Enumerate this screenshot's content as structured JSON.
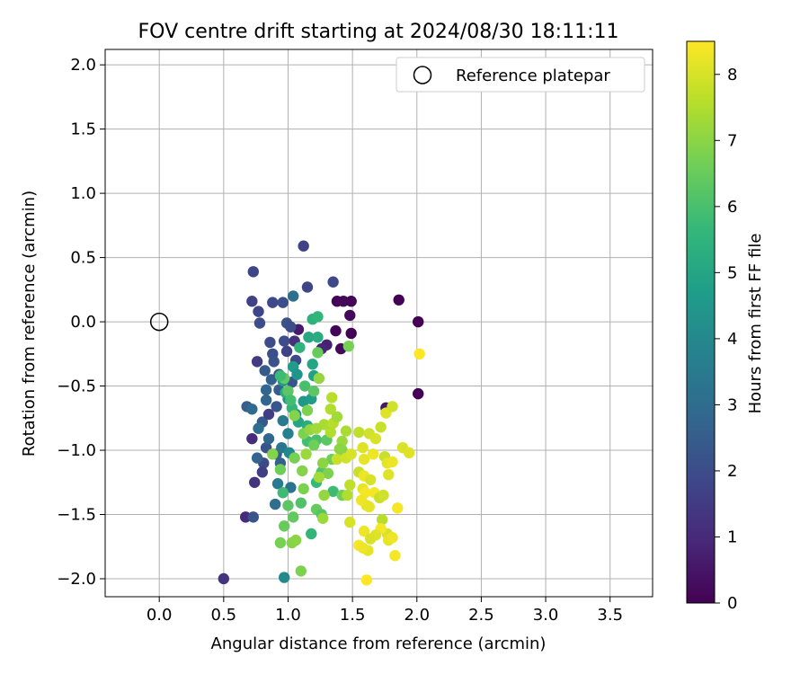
{
  "chart_data": {
    "type": "scatter",
    "title": "FOV centre drift starting at 2024/08/30 18:11:11",
    "xlabel": "Angular distance from reference (arcmin)",
    "ylabel": "Rotation from reference (arcmin)",
    "xlim": [
      -0.42,
      3.83
    ],
    "ylim": [
      -2.14,
      2.12
    ],
    "xticks": [
      0.0,
      0.5,
      1.0,
      1.5,
      2.0,
      2.5,
      3.0,
      3.5
    ],
    "xtick_labels": [
      "0.0",
      "0.5",
      "1.0",
      "1.5",
      "2.0",
      "2.5",
      "3.0",
      "3.5"
    ],
    "yticks": [
      -2.0,
      -1.5,
      -1.0,
      -0.5,
      0.0,
      0.5,
      1.0,
      1.5,
      2.0
    ],
    "ytick_labels": [
      "−2.0",
      "−1.5",
      "−1.0",
      "−0.5",
      "0.0",
      "0.5",
      "1.0",
      "1.5",
      "2.0"
    ],
    "grid": true,
    "legend": {
      "position": "top-right",
      "entries": [
        "Reference platepar"
      ]
    },
    "reference_point": {
      "x": 0.0,
      "y": 0.0,
      "label": "Reference platepar"
    },
    "colorbar": {
      "label": "Hours from first FF file",
      "range": [
        0,
        8.5
      ],
      "ticks": [
        0,
        1,
        2,
        3,
        4,
        5,
        6,
        7,
        8
      ],
      "tick_labels": [
        "0",
        "1",
        "2",
        "3",
        "4",
        "5",
        "6",
        "7",
        "8"
      ],
      "colormap": "viridis",
      "colors": [
        "#440154",
        "#482878",
        "#3e4989",
        "#31688e",
        "#26828e",
        "#1f9e89",
        "#35b779",
        "#6ece58",
        "#b5de2b",
        "#fde725"
      ]
    },
    "points": [
      [
        1.86,
        0.17,
        0.0
      ],
      [
        2.01,
        0.0,
        0.0
      ],
      [
        2.01,
        -0.56,
        0.0
      ],
      [
        1.38,
        0.16,
        0.1
      ],
      [
        1.43,
        0.16,
        0.2
      ],
      [
        1.49,
        0.16,
        0.1
      ],
      [
        1.48,
        0.05,
        0.2
      ],
      [
        1.49,
        -0.09,
        0.0
      ],
      [
        1.41,
        -0.21,
        0.2
      ],
      [
        1.37,
        -0.07,
        0.1
      ],
      [
        1.08,
        -0.06,
        0.6
      ],
      [
        1.76,
        -0.67,
        0.5
      ],
      [
        1.05,
        -0.15,
        1.2
      ],
      [
        1.3,
        -0.18,
        0.8
      ],
      [
        1.26,
        -0.21,
        0.9
      ],
      [
        1.12,
        0.59,
        1.7
      ],
      [
        1.15,
        0.27,
        1.8
      ],
      [
        1.35,
        0.31,
        1.9
      ],
      [
        0.73,
        0.39,
        1.8
      ],
      [
        0.72,
        0.16,
        1.7
      ],
      [
        0.77,
        0.08,
        1.8
      ],
      [
        0.78,
        -0.01,
        2.0
      ],
      [
        0.88,
        0.15,
        1.9
      ],
      [
        0.96,
        0.15,
        2.1
      ],
      [
        1.04,
        0.2,
        3.1
      ],
      [
        0.76,
        -0.31,
        1.5
      ],
      [
        0.86,
        -0.16,
        2.0
      ],
      [
        0.88,
        -0.25,
        2.1
      ],
      [
        0.89,
        -0.31,
        2.2
      ],
      [
        0.82,
        -0.38,
        2.4
      ],
      [
        0.87,
        -0.45,
        2.6
      ],
      [
        0.83,
        -0.53,
        2.8
      ],
      [
        0.91,
        -0.66,
        2.3
      ],
      [
        0.93,
        -0.41,
        2.1
      ],
      [
        0.97,
        -0.15,
        2.0
      ],
      [
        0.99,
        -0.01,
        2.2
      ],
      [
        1.02,
        -0.04,
        2.0
      ],
      [
        0.99,
        -0.23,
        1.7
      ],
      [
        1.06,
        -0.3,
        1.9
      ],
      [
        1.03,
        -0.47,
        2.3
      ],
      [
        0.93,
        -0.53,
        2.5
      ],
      [
        0.8,
        -0.78,
        2.4
      ],
      [
        0.83,
        -0.98,
        2.2
      ],
      [
        0.81,
        -1.1,
        1.9
      ],
      [
        0.8,
        -1.17,
        1.6
      ],
      [
        0.74,
        -1.25,
        1.3
      ],
      [
        0.72,
        -0.91,
        1.1
      ],
      [
        0.67,
        -1.52,
        1.0
      ],
      [
        0.73,
        -1.52,
        2.2
      ],
      [
        0.5,
        -2.0,
        1.3
      ],
      [
        0.68,
        -0.66,
        2.5
      ],
      [
        0.72,
        -0.68,
        2.9
      ],
      [
        0.77,
        -0.83,
        3.0
      ],
      [
        0.76,
        -1.06,
        2.7
      ],
      [
        0.85,
        -0.91,
        2.8
      ],
      [
        0.91,
        -1.03,
        2.6
      ],
      [
        0.96,
        -0.77,
        3.5
      ],
      [
        1.0,
        -0.87,
        3.7
      ],
      [
        0.95,
        -0.98,
        3.3
      ],
      [
        0.94,
        -1.1,
        2.6
      ],
      [
        0.92,
        -1.26,
        3.5
      ],
      [
        0.9,
        -1.42,
        3.1
      ],
      [
        1.02,
        -1.29,
        3.2
      ],
      [
        1.01,
        -1.02,
        4.0
      ],
      [
        1.0,
        -0.6,
        4.2
      ],
      [
        1.06,
        -0.72,
        4.1
      ],
      [
        1.12,
        -0.62,
        4.5
      ],
      [
        1.18,
        -0.6,
        4.7
      ],
      [
        1.2,
        -0.42,
        4.8
      ],
      [
        1.19,
        -0.33,
        5.0
      ],
      [
        1.23,
        -0.12,
        5.2
      ],
      [
        1.19,
        0.02,
        5.4
      ],
      [
        1.23,
        0.04,
        5.6
      ],
      [
        1.16,
        -0.12,
        5.1
      ],
      [
        1.09,
        -0.2,
        5.5
      ],
      [
        1.04,
        -0.35,
        4.7
      ],
      [
        1.07,
        -0.41,
        4.4
      ],
      [
        0.96,
        -0.46,
        4.6
      ],
      [
        0.98,
        -0.55,
        5.3
      ],
      [
        1.03,
        -0.67,
        5.6
      ],
      [
        1.08,
        -0.78,
        5.0
      ],
      [
        1.15,
        -0.81,
        5.3
      ],
      [
        1.15,
        -0.93,
        5.9
      ],
      [
        1.22,
        -0.92,
        6.0
      ],
      [
        1.3,
        -0.92,
        6.3
      ],
      [
        1.34,
        -1.07,
        6.6
      ],
      [
        1.42,
        -1.0,
        6.9
      ],
      [
        1.26,
        -1.17,
        6.1
      ],
      [
        1.22,
        -1.25,
        5.7
      ],
      [
        1.35,
        -1.32,
        5.8
      ],
      [
        1.42,
        -1.35,
        6.6
      ],
      [
        0.97,
        -1.99,
        4.0
      ],
      [
        0.94,
        -1.72,
        6.7
      ],
      [
        0.97,
        -1.59,
        6.5
      ],
      [
        1.18,
        -1.65,
        5.6
      ],
      [
        1.03,
        -1.72,
        6.9
      ],
      [
        1.1,
        -1.94,
        6.8
      ],
      [
        1.06,
        -1.7,
        7.0
      ],
      [
        1.22,
        -1.46,
        6.5
      ],
      [
        1.26,
        -1.5,
        6.2
      ],
      [
        1.27,
        -1.53,
        7.2
      ],
      [
        1.27,
        -1.1,
        7.0
      ],
      [
        1.31,
        -1.18,
        6.8
      ],
      [
        1.28,
        -1.35,
        7.1
      ],
      [
        1.24,
        -1.21,
        7.3
      ],
      [
        1.12,
        -1.3,
        6.8
      ],
      [
        1.1,
        -1.41,
        6.1
      ],
      [
        1.0,
        -1.43,
        6.3
      ],
      [
        1.04,
        -1.52,
        6.4
      ],
      [
        0.94,
        -1.15,
        6.6
      ],
      [
        0.96,
        -1.33,
        5.8
      ],
      [
        1.05,
        -1.06,
        6.7
      ],
      [
        1.11,
        -1.16,
        6.9
      ],
      [
        1.14,
        -1.03,
        7.2
      ],
      [
        1.12,
        -0.87,
        6.8
      ],
      [
        1.17,
        -0.84,
        7.1
      ],
      [
        1.2,
        -0.96,
        6.6
      ],
      [
        1.15,
        -0.69,
        6.8
      ],
      [
        1.05,
        -0.73,
        6.9
      ],
      [
        1.0,
        -0.54,
        6.3
      ],
      [
        0.97,
        -0.44,
        6.4
      ],
      [
        0.94,
        -0.42,
        5.8
      ],
      [
        1.02,
        -0.61,
        5.9
      ],
      [
        1.13,
        -0.5,
        6.0
      ],
      [
        1.2,
        -0.54,
        6.3
      ],
      [
        1.24,
        -0.44,
        7.1
      ],
      [
        1.23,
        -0.24,
        6.5
      ],
      [
        1.28,
        -0.8,
        7.4
      ],
      [
        1.33,
        -0.68,
        7.5
      ],
      [
        1.35,
        -0.79,
        7.6
      ],
      [
        1.38,
        -0.74,
        7.3
      ],
      [
        1.33,
        -0.86,
        7.5
      ],
      [
        1.22,
        -0.83,
        7.3
      ],
      [
        1.34,
        -0.59,
        7.6
      ],
      [
        1.38,
        -1.07,
        7.8
      ],
      [
        1.45,
        -1.06,
        7.9
      ],
      [
        1.49,
        -1.03,
        8.0
      ],
      [
        1.55,
        -0.86,
        7.7
      ],
      [
        1.63,
        -0.87,
        7.9
      ],
      [
        1.68,
        -0.91,
        8.0
      ],
      [
        1.72,
        -0.82,
        7.8
      ],
      [
        1.76,
        -0.71,
        8.1
      ],
      [
        1.81,
        -0.66,
        7.9
      ],
      [
        1.58,
        -0.98,
        8.1
      ],
      [
        1.59,
        -1.07,
        8.2
      ],
      [
        1.75,
        -1.05,
        7.8
      ],
      [
        1.77,
        -1.1,
        8.2
      ],
      [
        1.66,
        -1.03,
        8.3
      ],
      [
        1.78,
        -1.19,
        8.1
      ],
      [
        1.55,
        -1.17,
        7.8
      ],
      [
        1.59,
        -1.2,
        8.3
      ],
      [
        1.64,
        -1.23,
        8.0
      ],
      [
        1.58,
        -1.3,
        8.2
      ],
      [
        1.6,
        -1.33,
        8.4
      ],
      [
        1.61,
        -1.43,
        8.1
      ],
      [
        1.57,
        -1.39,
        8.3
      ],
      [
        1.63,
        -1.44,
        8.2
      ],
      [
        1.67,
        -1.33,
        8.4
      ],
      [
        1.71,
        -1.37,
        7.8
      ],
      [
        1.74,
        -1.35,
        7.9
      ],
      [
        1.73,
        -1.54,
        7.6
      ],
      [
        1.77,
        -1.65,
        8.0
      ],
      [
        1.78,
        -1.7,
        8.2
      ],
      [
        1.81,
        -1.68,
        8.3
      ],
      [
        1.72,
        -1.61,
        8.4
      ],
      [
        1.68,
        -1.66,
        8.1
      ],
      [
        1.59,
        -1.63,
        8.3
      ],
      [
        1.55,
        -1.74,
        8.4
      ],
      [
        1.62,
        -1.78,
        8.2
      ],
      [
        1.64,
        -1.69,
        8.0
      ],
      [
        1.58,
        -1.76,
        8.3
      ],
      [
        1.61,
        -2.01,
        8.5
      ],
      [
        1.48,
        -1.56,
        8.0
      ],
      [
        1.48,
        -1.27,
        7.7
      ],
      [
        1.46,
        -1.35,
        7.5
      ],
      [
        1.85,
        -1.45,
        8.4
      ],
      [
        1.83,
        -1.82,
        8.4
      ],
      [
        1.81,
        -1.09,
        8.3
      ],
      [
        1.89,
        -0.98,
        8.0
      ],
      [
        1.94,
        -1.02,
        8.1
      ],
      [
        2.02,
        -0.25,
        8.5
      ],
      [
        1.47,
        -0.19,
        6.7
      ],
      [
        1.42,
        -0.93,
        7.2
      ],
      [
        1.45,
        -0.85,
        7.4
      ],
      [
        1.4,
        -0.99,
        7.0
      ],
      [
        0.88,
        -1.03,
        6.9
      ],
      [
        0.85,
        -0.72,
        1.6
      ],
      [
        0.83,
        -0.61,
        2.8
      ]
    ]
  }
}
